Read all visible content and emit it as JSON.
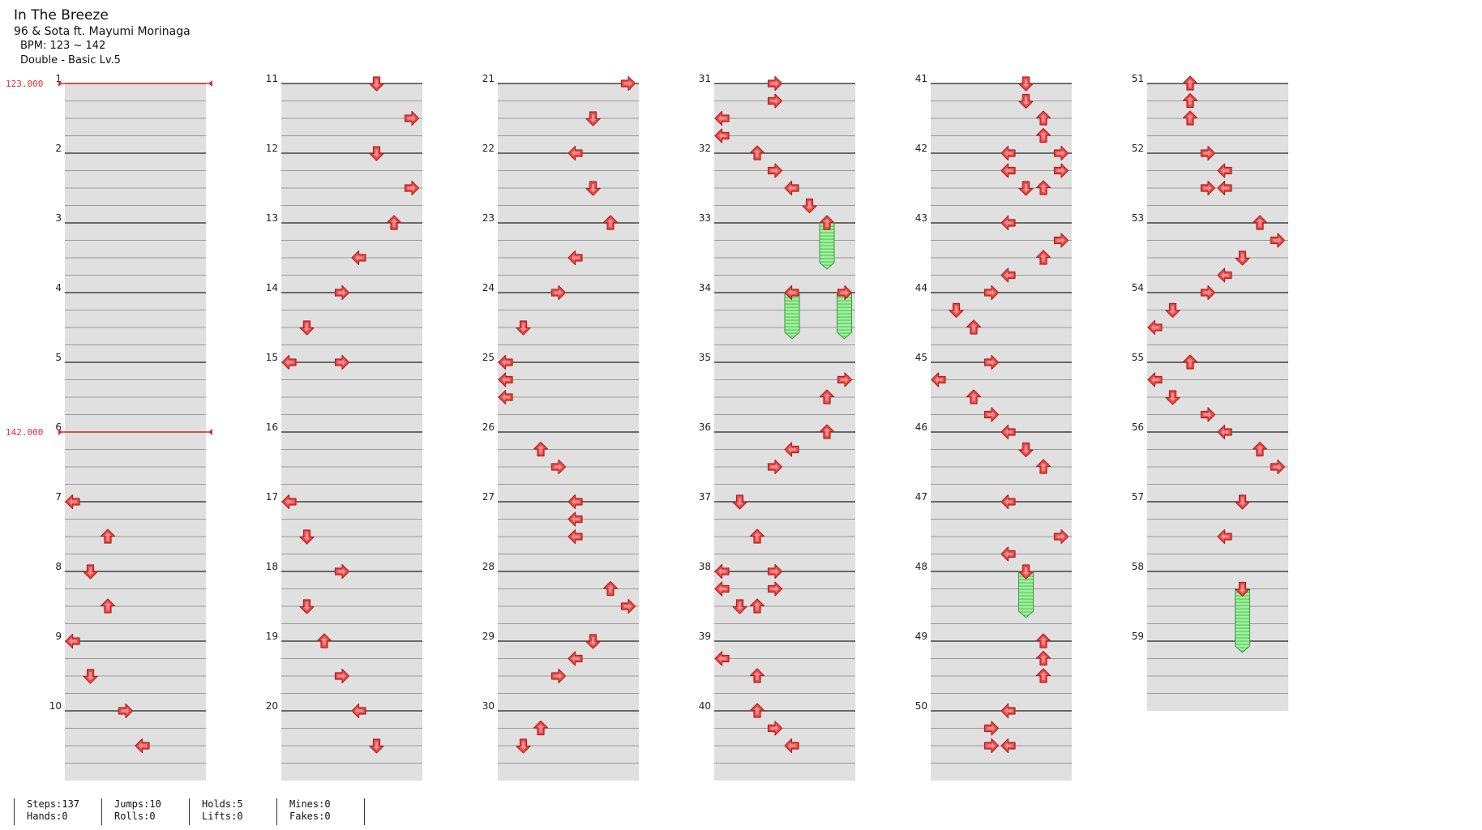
{
  "song": {
    "title": "In The Breeze",
    "artist": "96 & Sota ft. Mayumi Morinaga",
    "bpm_label": "BPM: 123 ~ 142",
    "difficulty_label": "Double - Basic Lv.5"
  },
  "colors": {
    "arrow": "#f04848",
    "arrow_stroke": "#b02020",
    "hold": "#8ee88e",
    "hold_stroke": "#3a9a3a",
    "bpm": "#e03030",
    "band": "#e0e0e0"
  },
  "bpm_changes": [
    {
      "measure": 1,
      "label": "123.000"
    },
    {
      "measure": 6,
      "label": "142.000"
    }
  ],
  "measures": [
    {
      "n": 1,
      "notes": []
    },
    {
      "n": 2,
      "notes": []
    },
    {
      "n": 3,
      "notes": []
    },
    {
      "n": 4,
      "notes": []
    },
    {
      "n": 5,
      "notes": []
    },
    {
      "n": 6,
      "notes": []
    },
    {
      "n": 7,
      "notes": [
        {
          "b": 0,
          "l": 0
        },
        {
          "b": 2,
          "l": 2
        }
      ]
    },
    {
      "n": 8,
      "notes": [
        {
          "b": 0,
          "l": 1
        },
        {
          "b": 2,
          "l": 2
        }
      ]
    },
    {
      "n": 9,
      "notes": [
        {
          "b": 0,
          "l": 0
        },
        {
          "b": 2,
          "l": 1
        }
      ]
    },
    {
      "n": 10,
      "notes": [
        {
          "b": 0,
          "l": 3
        },
        {
          "b": 2,
          "l": 4
        }
      ]
    },
    {
      "n": 11,
      "notes": [
        {
          "b": 0,
          "l": 5
        },
        {
          "b": 2,
          "l": 7
        }
      ]
    },
    {
      "n": 12,
      "notes": [
        {
          "b": 0,
          "l": 5
        },
        {
          "b": 2,
          "l": 7
        }
      ]
    },
    {
      "n": 13,
      "notes": [
        {
          "b": 0,
          "l": 6
        },
        {
          "b": 2,
          "l": 4
        }
      ]
    },
    {
      "n": 14,
      "notes": [
        {
          "b": 0,
          "l": 3
        },
        {
          "b": 2,
          "l": 1
        }
      ]
    },
    {
      "n": 15,
      "notes": [
        {
          "b": 0,
          "l": 0
        },
        {
          "b": 0,
          "l": 3
        }
      ]
    },
    {
      "n": 16,
      "notes": []
    },
    {
      "n": 17,
      "notes": [
        {
          "b": 0,
          "l": 0
        },
        {
          "b": 2,
          "l": 1
        }
      ]
    },
    {
      "n": 18,
      "notes": [
        {
          "b": 0,
          "l": 3
        },
        {
          "b": 2,
          "l": 1
        }
      ]
    },
    {
      "n": 19,
      "notes": [
        {
          "b": 0,
          "l": 2
        },
        {
          "b": 2,
          "l": 3
        }
      ]
    },
    {
      "n": 20,
      "notes": [
        {
          "b": 0,
          "l": 4
        },
        {
          "b": 2,
          "l": 5
        }
      ]
    },
    {
      "n": 21,
      "notes": [
        {
          "b": 0,
          "l": 7
        },
        {
          "b": 2,
          "l": 5
        }
      ]
    },
    {
      "n": 22,
      "notes": [
        {
          "b": 0,
          "l": 4
        },
        {
          "b": 2,
          "l": 5
        }
      ]
    },
    {
      "n": 23,
      "notes": [
        {
          "b": 0,
          "l": 6
        },
        {
          "b": 2,
          "l": 4
        }
      ]
    },
    {
      "n": 24,
      "notes": [
        {
          "b": 0,
          "l": 3
        },
        {
          "b": 2,
          "l": 1
        }
      ]
    },
    {
      "n": 25,
      "notes": [
        {
          "b": 0,
          "l": 0
        },
        {
          "b": 1,
          "l": 0
        },
        {
          "b": 2,
          "l": 0
        }
      ]
    },
    {
      "n": 26,
      "notes": [
        {
          "b": 1,
          "l": 2
        },
        {
          "b": 2,
          "l": 3
        }
      ]
    },
    {
      "n": 27,
      "notes": [
        {
          "b": 0,
          "l": 4
        },
        {
          "b": 1,
          "l": 4
        },
        {
          "b": 2,
          "l": 4
        }
      ]
    },
    {
      "n": 28,
      "notes": [
        {
          "b": 1,
          "l": 6
        },
        {
          "b": 2,
          "l": 7
        }
      ]
    },
    {
      "n": 29,
      "notes": [
        {
          "b": 0,
          "l": 5
        },
        {
          "b": 1,
          "l": 4
        },
        {
          "b": 2,
          "l": 3
        }
      ]
    },
    {
      "n": 30,
      "notes": [
        {
          "b": 1,
          "l": 2
        },
        {
          "b": 2,
          "l": 1
        }
      ]
    },
    {
      "n": 31,
      "notes": [
        {
          "b": 0,
          "l": 3
        },
        {
          "b": 1,
          "l": 3
        },
        {
          "b": 2,
          "l": 0
        },
        {
          "b": 3,
          "l": 0
        }
      ]
    },
    {
      "n": 32,
      "notes": [
        {
          "b": 0,
          "l": 2
        },
        {
          "b": 1,
          "l": 3
        },
        {
          "b": 2,
          "l": 4
        },
        {
          "b": 3,
          "l": 5
        }
      ]
    },
    {
      "n": 33,
      "notes": [
        {
          "b": 0,
          "l": 6,
          "hold": 2
        }
      ]
    },
    {
      "n": 34,
      "notes": [
        {
          "b": 0,
          "l": 4,
          "hold": 2
        },
        {
          "b": 0,
          "l": 7,
          "hold": 2
        }
      ]
    },
    {
      "n": 35,
      "notes": [
        {
          "b": 1,
          "l": 7
        },
        {
          "b": 2,
          "l": 6
        }
      ]
    },
    {
      "n": 36,
      "notes": [
        {
          "b": 0,
          "l": 6
        },
        {
          "b": 1,
          "l": 4
        },
        {
          "b": 2,
          "l": 3
        }
      ]
    },
    {
      "n": 37,
      "notes": [
        {
          "b": 0,
          "l": 1
        },
        {
          "b": 2,
          "l": 2
        }
      ]
    },
    {
      "n": 38,
      "notes": [
        {
          "b": 0,
          "l": 0
        },
        {
          "b": 0,
          "l": 3
        },
        {
          "b": 1,
          "l": 0
        },
        {
          "b": 1,
          "l": 3
        },
        {
          "b": 2,
          "l": 1
        },
        {
          "b": 2,
          "l": 2
        }
      ]
    },
    {
      "n": 39,
      "notes": [
        {
          "b": 1,
          "l": 0
        },
        {
          "b": 2,
          "l": 2
        }
      ]
    },
    {
      "n": 40,
      "notes": [
        {
          "b": 0,
          "l": 2
        },
        {
          "b": 1,
          "l": 3
        },
        {
          "b": 2,
          "l": 4
        }
      ]
    },
    {
      "n": 41,
      "notes": [
        {
          "b": 0,
          "l": 5
        },
        {
          "b": 1,
          "l": 5
        },
        {
          "b": 2,
          "l": 6
        },
        {
          "b": 3,
          "l": 6
        }
      ]
    },
    {
      "n": 42,
      "notes": [
        {
          "b": 0,
          "l": 4
        },
        {
          "b": 0,
          "l": 7
        },
        {
          "b": 1,
          "l": 4
        },
        {
          "b": 1,
          "l": 7
        },
        {
          "b": 2,
          "l": 5
        },
        {
          "b": 2,
          "l": 6
        }
      ]
    },
    {
      "n": 43,
      "notes": [
        {
          "b": 0,
          "l": 4
        },
        {
          "b": 1,
          "l": 7
        },
        {
          "b": 2,
          "l": 6
        },
        {
          "b": 3,
          "l": 4
        }
      ]
    },
    {
      "n": 44,
      "notes": [
        {
          "b": 0,
          "l": 3
        },
        {
          "b": 1,
          "l": 1
        },
        {
          "b": 2,
          "l": 2
        }
      ]
    },
    {
      "n": 45,
      "notes": [
        {
          "b": 0,
          "l": 3
        },
        {
          "b": 1,
          "l": 0
        },
        {
          "b": 2,
          "l": 2
        },
        {
          "b": 3,
          "l": 3
        }
      ]
    },
    {
      "n": 46,
      "notes": [
        {
          "b": 0,
          "l": 4
        },
        {
          "b": 1,
          "l": 5
        },
        {
          "b": 2,
          "l": 6
        }
      ]
    },
    {
      "n": 47,
      "notes": [
        {
          "b": 0,
          "l": 4
        },
        {
          "b": 2,
          "l": 7
        },
        {
          "b": 3,
          "l": 4
        }
      ]
    },
    {
      "n": 48,
      "notes": [
        {
          "b": 0,
          "l": 5,
          "hold": 2
        }
      ]
    },
    {
      "n": 49,
      "notes": [
        {
          "b": 0,
          "l": 6
        },
        {
          "b": 1,
          "l": 6
        },
        {
          "b": 2,
          "l": 6
        }
      ]
    },
    {
      "n": 50,
      "notes": [
        {
          "b": 0,
          "l": 4
        },
        {
          "b": 1,
          "l": 3
        },
        {
          "b": 2,
          "l": 3
        },
        {
          "b": 2,
          "l": 4
        }
      ]
    },
    {
      "n": 51,
      "notes": [
        {
          "b": 0,
          "l": 2
        },
        {
          "b": 1,
          "l": 2
        },
        {
          "b": 2,
          "l": 2
        }
      ]
    },
    {
      "n": 52,
      "notes": [
        {
          "b": 0,
          "l": 3
        },
        {
          "b": 1,
          "l": 4
        },
        {
          "b": 2,
          "l": 3
        },
        {
          "b": 2,
          "l": 4
        }
      ]
    },
    {
      "n": 53,
      "notes": [
        {
          "b": 0,
          "l": 6
        },
        {
          "b": 1,
          "l": 7
        },
        {
          "b": 2,
          "l": 5
        },
        {
          "b": 3,
          "l": 4
        }
      ]
    },
    {
      "n": 54,
      "notes": [
        {
          "b": 0,
          "l": 3
        },
        {
          "b": 1,
          "l": 1
        },
        {
          "b": 2,
          "l": 0
        }
      ]
    },
    {
      "n": 55,
      "notes": [
        {
          "b": 0,
          "l": 2
        },
        {
          "b": 1,
          "l": 0
        },
        {
          "b": 2,
          "l": 1
        },
        {
          "b": 3,
          "l": 3
        }
      ]
    },
    {
      "n": 56,
      "notes": [
        {
          "b": 0,
          "l": 4
        },
        {
          "b": 1,
          "l": 6
        },
        {
          "b": 2,
          "l": 7
        }
      ]
    },
    {
      "n": 57,
      "notes": [
        {
          "b": 0,
          "l": 5
        },
        {
          "b": 2,
          "l": 4
        }
      ]
    },
    {
      "n": 58,
      "notes": [
        {
          "b": 1,
          "l": 5,
          "hold": 3
        }
      ]
    },
    {
      "n": 59,
      "notes": []
    }
  ],
  "stats": [
    [
      "Steps:137",
      "Hands:0"
    ],
    [
      "Jumps:10",
      "Rolls:0"
    ],
    [
      "Holds:5",
      "Lifts:0"
    ],
    [
      "Mines:0",
      "Fakes:0"
    ]
  ]
}
